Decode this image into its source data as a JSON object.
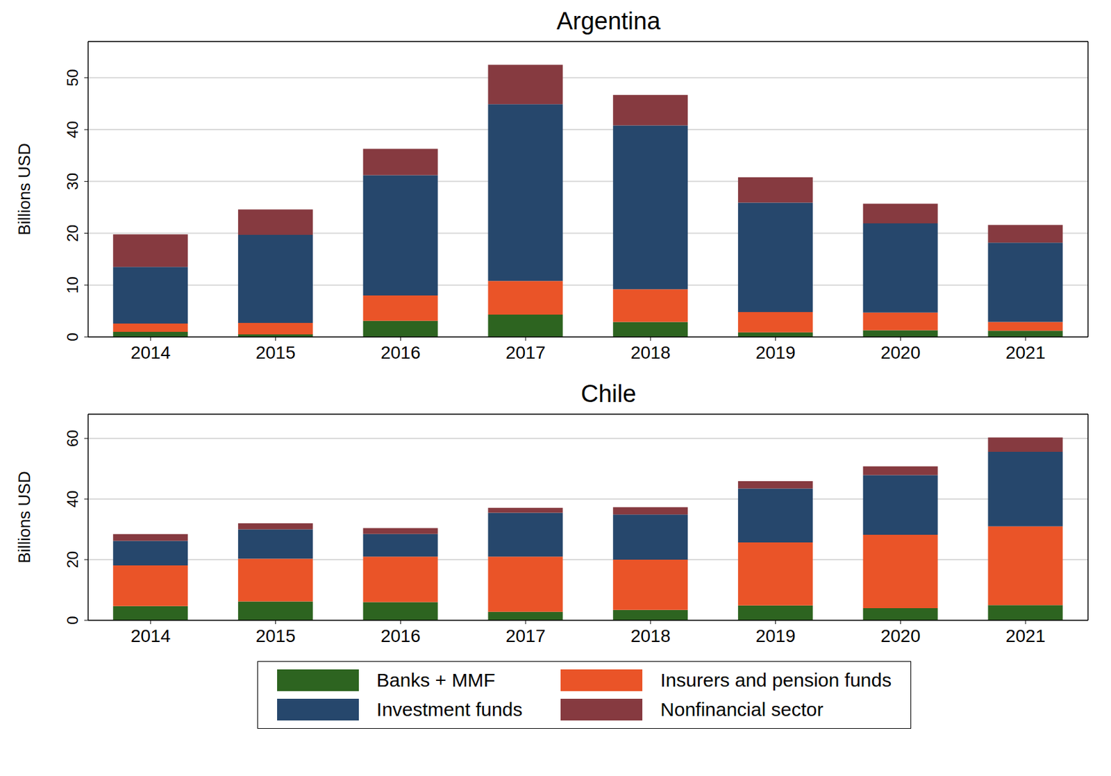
{
  "chart_data": [
    {
      "type": "bar",
      "title": "Argentina",
      "y_label": "Billions USD",
      "stacked": true,
      "grid": true,
      "categories": [
        "2014",
        "2015",
        "2016",
        "2017",
        "2018",
        "2019",
        "2020",
        "2021"
      ],
      "ylim": [
        0,
        57
      ],
      "yticks": [
        0,
        10,
        20,
        30,
        40,
        50
      ],
      "series": [
        {
          "name": "Banks + MMF",
          "color": "#2d6420",
          "values": [
            1.0,
            0.5,
            3.1,
            4.3,
            2.9,
            0.9,
            1.3,
            1.2
          ]
        },
        {
          "name": "Insurers and pension funds",
          "color": "#ea5428",
          "values": [
            1.6,
            2.2,
            4.9,
            6.5,
            6.3,
            3.9,
            3.4,
            1.7
          ]
        },
        {
          "name": "Investment funds",
          "color": "#26476c",
          "values": [
            10.9,
            17.0,
            23.2,
            34.1,
            31.6,
            21.1,
            17.2,
            15.3
          ]
        },
        {
          "name": "Nonfinancial sector",
          "color": "#863a40",
          "values": [
            6.3,
            4.9,
            5.1,
            7.6,
            5.9,
            4.9,
            3.8,
            3.4
          ]
        }
      ]
    },
    {
      "type": "bar",
      "title": "Chile",
      "y_label": "Billions USD",
      "stacked": true,
      "grid": true,
      "legend": "bottom",
      "categories": [
        "2014",
        "2015",
        "2016",
        "2017",
        "2018",
        "2019",
        "2020",
        "2021"
      ],
      "ylim": [
        0,
        68
      ],
      "yticks": [
        0,
        20,
        40,
        60
      ],
      "series": [
        {
          "name": "Banks + MMF",
          "color": "#2d6420",
          "values": [
            4.7,
            6.2,
            6.0,
            2.8,
            3.4,
            4.9,
            4.0,
            5.0
          ]
        },
        {
          "name": "Insurers and pension funds",
          "color": "#ea5428",
          "values": [
            13.4,
            14.1,
            15.0,
            18.2,
            16.6,
            20.8,
            24.2,
            26.0
          ]
        },
        {
          "name": "Investment funds",
          "color": "#26476c",
          "values": [
            8.1,
            9.7,
            7.5,
            14.5,
            14.9,
            17.8,
            19.7,
            24.6
          ]
        },
        {
          "name": "Nonfinancial sector",
          "color": "#863a40",
          "values": [
            2.2,
            2.0,
            1.9,
            1.6,
            2.4,
            2.4,
            2.9,
            4.7
          ]
        }
      ]
    }
  ]
}
